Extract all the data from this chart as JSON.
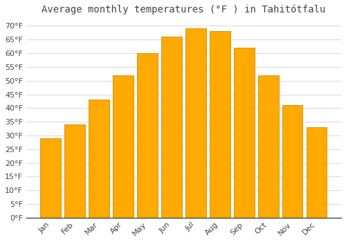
{
  "title": "Average monthly temperatures (°F ) in Tahitótfalu",
  "months": [
    "Jan",
    "Feb",
    "Mar",
    "Apr",
    "May",
    "Jun",
    "Jul",
    "Aug",
    "Sep",
    "Oct",
    "Nov",
    "Dec"
  ],
  "values": [
    29,
    34,
    43,
    52,
    60,
    66,
    69,
    68,
    62,
    52,
    41,
    33
  ],
  "bar_color": "#FFAA00",
  "bar_edge_color": "#CC8800",
  "background_color": "#FFFFFF",
  "grid_color": "#DDDDDD",
  "text_color": "#444444",
  "ylim": [
    0,
    72
  ],
  "yticks": [
    0,
    5,
    10,
    15,
    20,
    25,
    30,
    35,
    40,
    45,
    50,
    55,
    60,
    65,
    70
  ],
  "ytick_labels": [
    "0°F",
    "5°F",
    "10°F",
    "15°F",
    "20°F",
    "25°F",
    "30°F",
    "35°F",
    "40°F",
    "45°F",
    "50°F",
    "55°F",
    "60°F",
    "65°F",
    "70°F"
  ],
  "title_fontsize": 10,
  "tick_fontsize": 8,
  "bar_width": 0.85
}
